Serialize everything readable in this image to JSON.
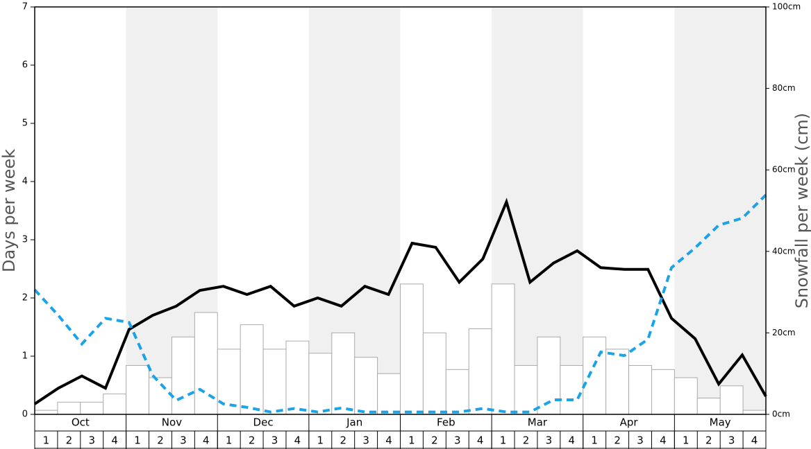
{
  "chart_data": {
    "type": "bar-line",
    "y_label": "Days per week",
    "y2_label": "Snowfall per week (cm)",
    "months": [
      "Oct",
      "Nov",
      "Dec",
      "Jan",
      "Feb",
      "Mar",
      "Apr",
      "May"
    ],
    "categories": [
      "1",
      "2",
      "3",
      "4",
      "1",
      "2",
      "3",
      "4",
      "1",
      "2",
      "3",
      "4",
      "1",
      "2",
      "3",
      "4",
      "1",
      "2",
      "3",
      "4",
      "1",
      "2",
      "3",
      "4",
      "1",
      "2",
      "3",
      "4",
      "1",
      "2",
      "3",
      "4"
    ],
    "ylim": [
      0,
      7
    ],
    "yticks": [
      0,
      1,
      2,
      3,
      4,
      5,
      6,
      7
    ],
    "y2lim": [
      0,
      100
    ],
    "y2ticks": [
      {
        "value": 0,
        "label": "0cm"
      },
      {
        "value": 20,
        "label": "20cm"
      },
      {
        "value": 40,
        "label": "40cm"
      },
      {
        "value": 60,
        "label": "60cm"
      },
      {
        "value": 80,
        "label": "80cm"
      },
      {
        "value": 100,
        "label": "100cm"
      }
    ],
    "series": [
      {
        "type": "bar",
        "axis": "y2",
        "color": "#ffffff",
        "values": [
          1,
          3,
          3,
          5,
          12,
          9,
          19,
          25,
          16,
          22,
          16,
          18,
          15,
          20,
          14,
          10,
          32,
          20,
          11,
          21,
          32,
          12,
          19,
          12,
          19,
          16,
          12,
          11,
          9,
          4,
          7,
          1
        ]
      },
      {
        "type": "line",
        "color": "#000000",
        "values": [
          0.18,
          0.45,
          0.66,
          0.45,
          1.46,
          1.7,
          1.86,
          2.13,
          2.2,
          2.06,
          2.2,
          1.86,
          2.0,
          1.86,
          2.2,
          2.06,
          2.94,
          2.87,
          2.27,
          2.67,
          3.65,
          2.27,
          2.6,
          2.81,
          2.52,
          2.49,
          2.49,
          1.65,
          1.3,
          0.52,
          1.02,
          0.31
        ]
      },
      {
        "type": "dashed",
        "color": "#1aa3e8",
        "values": [
          2.14,
          1.7,
          1.21,
          1.65,
          1.58,
          0.67,
          0.24,
          0.43,
          0.18,
          0.12,
          0.04,
          0.1,
          0.04,
          0.11,
          0.04,
          0.04,
          0.04,
          0.04,
          0.04,
          0.1,
          0.04,
          0.04,
          0.25,
          0.25,
          1.07,
          1.01,
          1.29,
          2.52,
          2.86,
          3.25,
          3.37,
          3.77
        ]
      }
    ]
  }
}
